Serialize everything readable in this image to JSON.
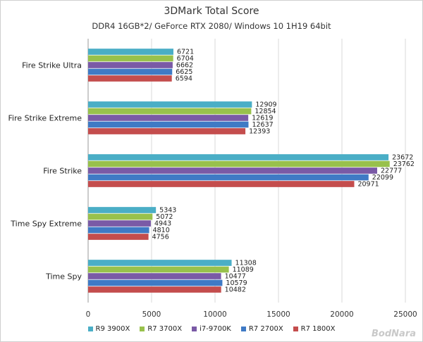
{
  "chart_data": {
    "type": "bar",
    "orientation": "horizontal",
    "title": "3DMark Total Score",
    "subtitle": "DDR4 16GB*2/ GeForce RTX 2080/ Windows 10 1H19 64bit",
    "categories": [
      "Fire Strike Ultra",
      "Fire Strike Extreme",
      "Fire Strike",
      "Time Spy Extreme",
      "Time Spy"
    ],
    "series": [
      {
        "name": "R9 3900X",
        "color": "#4aaec6",
        "values": [
          6721,
          12909,
          23672,
          5343,
          11308
        ]
      },
      {
        "name": "R7 3700X",
        "color": "#98c14c",
        "values": [
          6704,
          12854,
          23762,
          5072,
          11089
        ]
      },
      {
        "name": "i7-9700K",
        "color": "#7a5aa6",
        "values": [
          6662,
          12619,
          22777,
          4943,
          10477
        ]
      },
      {
        "name": "R7 2700X",
        "color": "#3f7ac5",
        "values": [
          6625,
          12637,
          22099,
          4810,
          10579
        ]
      },
      {
        "name": "R7 1800X",
        "color": "#c44d4d",
        "values": [
          6594,
          12393,
          20971,
          4756,
          10482
        ]
      }
    ],
    "xlim": [
      0,
      25000
    ],
    "xticks": [
      0,
      5000,
      10000,
      15000,
      20000,
      25000
    ],
    "grid": true,
    "legend_position": "bottom"
  },
  "watermark": "BodNara"
}
